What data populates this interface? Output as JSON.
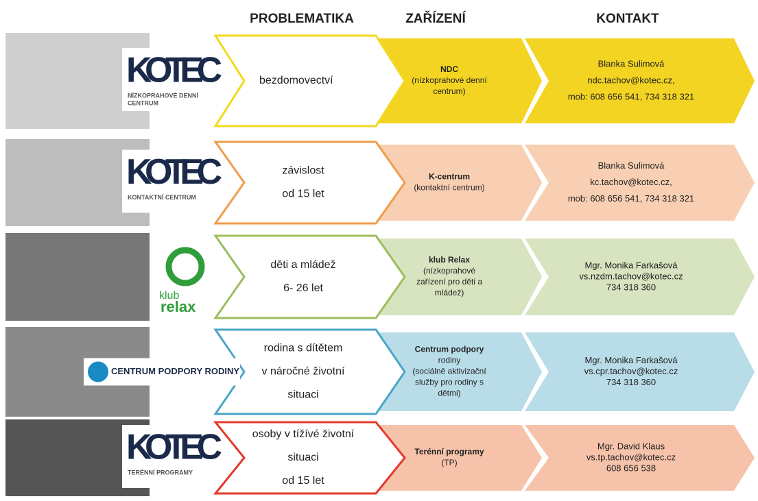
{
  "headers": [
    "PROBLEMATIKA",
    "ZAŘÍZENÍ",
    "KONTAKT"
  ],
  "rows": [
    {
      "logo": [
        "KOTEC",
        "NÍZKOPRAHOVÉ DENNÍ",
        "CENTRUM"
      ],
      "outline": "#f4d81c",
      "fill": "#f3d422",
      "problem": [
        "bezdomovectví"
      ],
      "facility": [
        "NDC",
        "(nízkoprahové denní",
        "centrum)"
      ],
      "contact": [
        "Blanka Sulimová",
        "ndc.tachov@kotec.cz,",
        "mob: 608 656 541, 734 318 321"
      ]
    },
    {
      "logo": [
        "KOTEC",
        "KONTAKTNÍ CENTRUM"
      ],
      "outline": "#ef9d4a",
      "fill": "#f8cfb2",
      "problem": [
        "závislost",
        "od 15 let"
      ],
      "facility": [
        "K-centrum",
        "(kontaktní centrum)"
      ],
      "contact": [
        "Blanka Sulimová",
        "kc.tachov@kotec.cz,",
        "mob: 608 656 541, 734 318 321"
      ]
    },
    {
      "logo": [
        "klub",
        "relax"
      ],
      "outline": "#9dbd5c",
      "fill": "#d7e4bf",
      "problem": [
        "děti a mládež",
        "6- 26 let"
      ],
      "facility": [
        "klub Relax",
        "(nízkoprahové",
        "zařízení pro děti a",
        "mládež)"
      ],
      "contact": [
        "Mgr. Monika Farkašová",
        "vs.nzdm.tachov@kotec.cz",
        "734 318 360"
      ]
    },
    {
      "logo": [
        "CENTRUM PODPORY RODINY"
      ],
      "outline": "#4ba6c8",
      "fill": "#b8dce8",
      "problem": [
        "rodina s dítětem",
        "v náročné životní",
        "situaci"
      ],
      "facility": [
        "Centrum podpory",
        "rodiny",
        "(sociálně aktivizační",
        "služby pro rodiny s",
        "dětmi)"
      ],
      "contact": [
        "Mgr. Monika Farkašová",
        "vs.cpr.tachov@kotec.cz",
        "734 318 360"
      ]
    },
    {
      "logo": [
        "KOTEC",
        "TERÉNNÍ PROGRAMY"
      ],
      "outline": "#e5382c",
      "fill": "#f6c3aa",
      "problem": [
        "osoby v tížívé životní",
        "situaci",
        "od 15 let"
      ],
      "facility": [
        "Terénní programy",
        "(TP)"
      ],
      "contact": [
        "Mgr. David Klaus",
        "vs.tp.tachov@kotec.cz",
        "608 656 538"
      ]
    }
  ]
}
